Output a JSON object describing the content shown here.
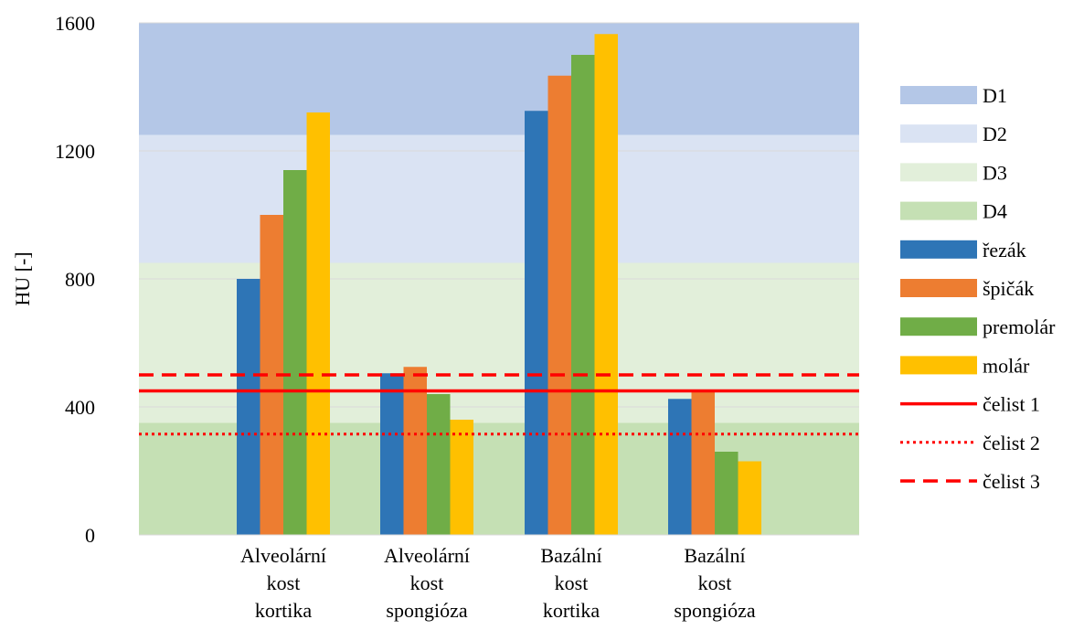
{
  "chart_data": {
    "type": "bar",
    "title": "",
    "xlabel": "",
    "ylabel": "HU [-]",
    "ylim": [
      0,
      1600
    ],
    "yticks": [
      0,
      400,
      800,
      1200,
      1600
    ],
    "grid": true,
    "legend_position": "right",
    "categories": [
      [
        "Alveolární",
        "kost",
        "kortika"
      ],
      [
        "Alveolární",
        "kost",
        "spongióza"
      ],
      [
        "Bazální",
        "kost",
        "kortika"
      ],
      [
        "Bazální",
        "kost",
        "spongióza"
      ]
    ],
    "bands": [
      {
        "name": "D1",
        "from": 1250,
        "to": 1600,
        "color": "#b4c7e7"
      },
      {
        "name": "D2",
        "from": 850,
        "to": 1250,
        "color": "#dae3f3"
      },
      {
        "name": "D3",
        "from": 350,
        "to": 850,
        "color": "#e2efda"
      },
      {
        "name": "D4",
        "from": 0,
        "to": 350,
        "color": "#c5e0b4"
      }
    ],
    "series": [
      {
        "name": "řezák",
        "color": "#2e75b6",
        "values": [
          800,
          505,
          1325,
          425
        ]
      },
      {
        "name": "špičák",
        "color": "#ed7d31",
        "values": [
          1000,
          525,
          1435,
          450
        ]
      },
      {
        "name": "premolár",
        "color": "#70ad47",
        "values": [
          1140,
          440,
          1500,
          260
        ]
      },
      {
        "name": "molár",
        "color": "#ffc000",
        "values": [
          1320,
          360,
          1565,
          230
        ]
      }
    ],
    "reference_lines": [
      {
        "name": "čelist 1",
        "value": 450,
        "style": "solid",
        "color": "#ff0000"
      },
      {
        "name": "čelist 2",
        "value": 315,
        "style": "dotted",
        "color": "#ff0000"
      },
      {
        "name": "čelist 3",
        "value": 500,
        "style": "dashed",
        "color": "#ff0000"
      }
    ]
  }
}
